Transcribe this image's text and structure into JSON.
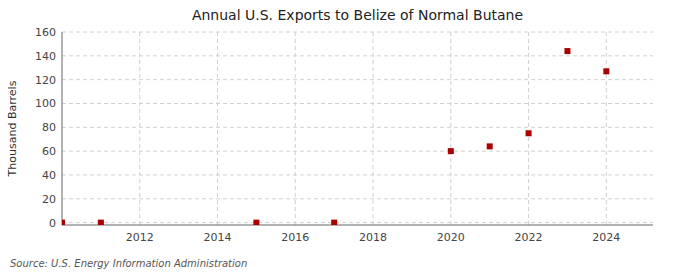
{
  "chart_data": {
    "type": "scatter",
    "title": "Annual U.S. Exports to Belize of Normal Butane",
    "ylabel": "Thousand Barrels",
    "annotation": "Source: U.S. Energy Information Administration",
    "x": [
      2010,
      2011,
      2015,
      2017,
      2020,
      2021,
      2022,
      2023,
      2024
    ],
    "values": [
      0,
      0,
      0,
      0,
      60,
      64,
      75,
      144,
      127
    ],
    "color": "#aa0000",
    "marker": "square",
    "xlim": [
      2010.0,
      2025.2
    ],
    "ylim": [
      -2,
      160
    ],
    "xticks": [
      2012,
      2014,
      2016,
      2018,
      2020,
      2022,
      2024
    ],
    "yticks": [
      0,
      20,
      40,
      60,
      80,
      100,
      120,
      140,
      160
    ],
    "grid": true
  }
}
